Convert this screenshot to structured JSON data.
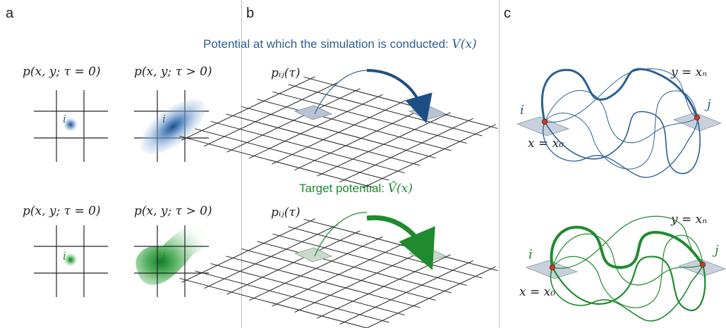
{
  "panels": {
    "a": "a",
    "b": "b",
    "c": "c"
  },
  "captions": {
    "top_text": "Potential at which the simulation is conducted: ",
    "top_math": "V(x)",
    "bottom_text": "Target potential: ",
    "bottom_math": "Ṽ(x)"
  },
  "labels": {
    "p_tau0": "p(x, y; τ = 0)",
    "p_taugt0": "p(x, y; τ > 0)",
    "pij": "pᵢⱼ(τ)",
    "i": "i",
    "j": "j",
    "y_eq": "y = xₙ",
    "x_eq": "x = x₀"
  },
  "colors": {
    "blue": "#2b5f95",
    "green": "#1f8a2e",
    "grid": "#222222",
    "tile": "#b9c3d1",
    "node": "#d9361e"
  }
}
